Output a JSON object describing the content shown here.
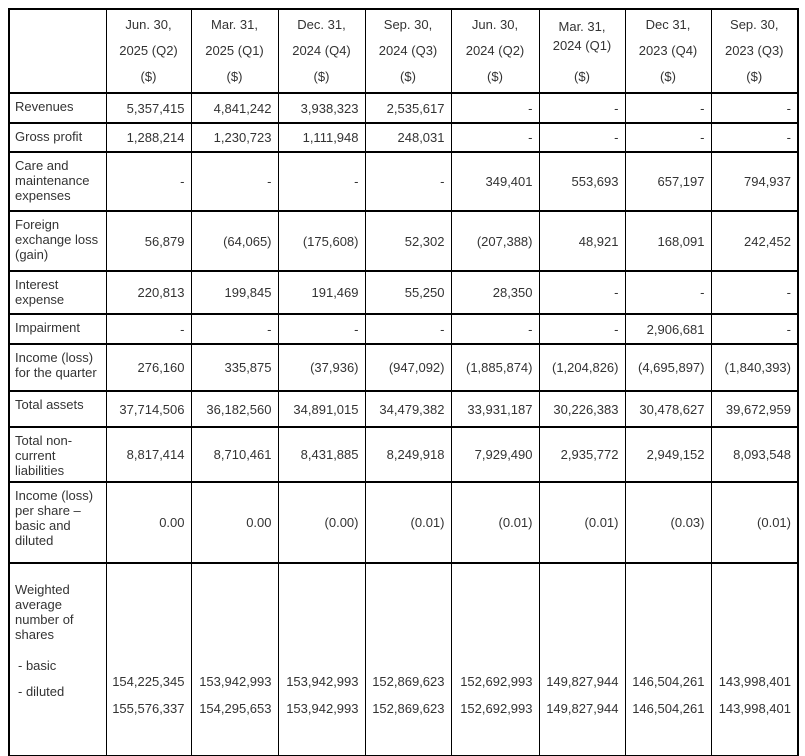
{
  "table": {
    "columns": [
      {
        "lines": [
          "Jun. 30,",
          "2025 (Q2)",
          "($)"
        ],
        "compact": false
      },
      {
        "lines": [
          "Mar. 31,",
          "2025 (Q1)",
          "($)"
        ],
        "compact": false
      },
      {
        "lines": [
          "Dec. 31,",
          "2024 (Q4)",
          "($)"
        ],
        "compact": false
      },
      {
        "lines": [
          "Sep. 30,",
          "2024 (Q3)",
          "($)"
        ],
        "compact": false
      },
      {
        "lines": [
          "Jun. 30,",
          "2024 (Q2)",
          "($)"
        ],
        "compact": false
      },
      {
        "lines": [
          "Mar. 31,",
          "2024 (Q1)",
          "($)"
        ],
        "compact": true
      },
      {
        "lines": [
          "Dec 31,",
          "2023 (Q4)",
          "($)"
        ],
        "compact": false
      },
      {
        "lines": [
          "Sep. 30,",
          "2023 (Q3)",
          "($)"
        ],
        "compact": false
      }
    ],
    "rows": [
      {
        "label": "Revenues",
        "values": [
          "5,357,415",
          "4,841,242",
          "3,938,323",
          "2,535,617",
          "-",
          "-",
          "-",
          "-"
        ]
      },
      {
        "label": "Gross profit",
        "values": [
          "1,288,214",
          "1,230,723",
          "1,111,948",
          "248,031",
          "-",
          "-",
          "-",
          "-"
        ]
      },
      {
        "label": "Care and maintenance expenses",
        "values": [
          "-",
          "-",
          "-",
          "-",
          "349,401",
          "553,693",
          "657,197",
          "794,937"
        ]
      },
      {
        "label": "Foreign exchange loss (gain)",
        "values": [
          "56,879",
          "(64,065)",
          "(175,608)",
          "52,302",
          "(207,388)",
          "48,921",
          "168,091",
          "242,452"
        ]
      },
      {
        "label": "Interest expense",
        "values": [
          "220,813",
          "199,845",
          "191,469",
          "55,250",
          "28,350",
          "-",
          "-",
          "-"
        ]
      },
      {
        "label": "Impairment",
        "values": [
          "-",
          "-",
          "-",
          "-",
          "-",
          "-",
          "2,906,681",
          "-"
        ]
      },
      {
        "label": "Income (loss) for the quarter",
        "values": [
          "276,160",
          "335,875",
          "(37,936)",
          "(947,092)",
          "(1,885,874)",
          "(1,204,826)",
          "(4,695,897)",
          "(1,840,393)"
        ]
      },
      {
        "label": "Total assets",
        "values": [
          "37,714,506",
          "36,182,560",
          "34,891,015",
          "34,479,382",
          "33,931,187",
          "30,226,383",
          "30,478,627",
          "39,672,959"
        ]
      },
      {
        "label": "Total non-current liabilities",
        "values": [
          "8,817,414",
          "8,710,461",
          "8,431,885",
          "8,249,918",
          "7,929,490",
          "2,935,772",
          "2,949,152",
          "8,093,548"
        ]
      },
      {
        "label": "Income (loss) per share – basic and diluted",
        "values": [
          "0.00",
          "0.00",
          "(0.00)",
          "(0.01)",
          "(0.01)",
          "(0.01)",
          "(0.03)",
          "(0.01)"
        ]
      }
    ],
    "shares_row": {
      "label": "Weighted average number of shares",
      "basic_label": "- basic",
      "diluted_label": "- diluted",
      "basic_values": [
        "154,225,345",
        "153,942,993",
        "153,942,993",
        "152,869,623",
        "152,692,993",
        "149,827,944",
        "146,504,261",
        "143,998,401"
      ],
      "diluted_values": [
        "155,576,337",
        "154,295,653",
        "153,942,993",
        "152,869,623",
        "152,692,993",
        "149,827,944",
        "146,504,261",
        "143,998,401"
      ]
    }
  }
}
